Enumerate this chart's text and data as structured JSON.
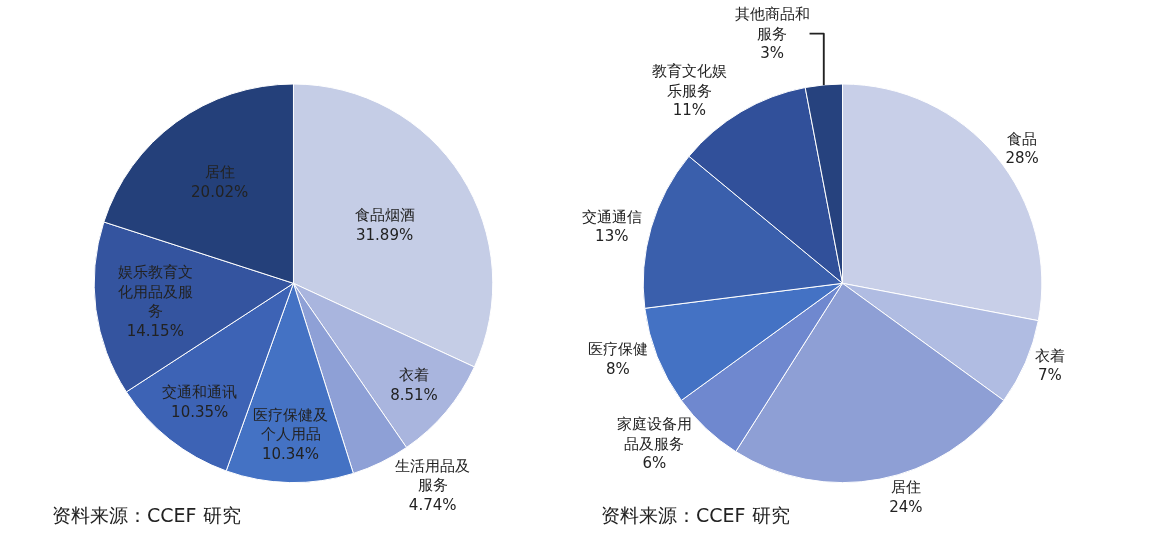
{
  "chart_data": [
    {
      "type": "pie",
      "categories": [
        "食品烟酒",
        "衣着",
        "生活用品及服务",
        "医疗保健及个人用品",
        "交通和通讯",
        "娱乐教育文化用品及服务",
        "居住"
      ],
      "values": [
        31.89,
        8.51,
        4.74,
        10.34,
        10.35,
        14.15,
        20.02
      ],
      "colors": [
        "#c5cde6",
        "#a9b5de",
        "#8ea0d6",
        "#4472c4",
        "#3d63b5",
        "#34549f",
        "#24407a"
      ],
      "value_labels": [
        "31.89%",
        "8.51%",
        "4.74%",
        "10.34%",
        "10.35%",
        "14.15%",
        "20.02%"
      ],
      "legend": false,
      "annotations": [
        "资料来源：CCEF 研究"
      ]
    },
    {
      "type": "pie",
      "categories": [
        "食品",
        "衣着",
        "居住",
        "家庭设备用品及服务",
        "医疗保健",
        "交通通信",
        "教育文化娱乐服务",
        "其他商品和服务"
      ],
      "values": [
        28,
        7,
        24,
        6,
        8,
        13,
        11,
        3
      ],
      "colors": [
        "#c8cfe8",
        "#b0bce2",
        "#8e9fd5",
        "#6f88cf",
        "#4472c4",
        "#3a5fac",
        "#31509a",
        "#26427e"
      ],
      "value_labels": [
        "28%",
        "7%",
        "24%",
        "6%",
        "8%",
        "13%",
        "11%",
        "3%"
      ],
      "legend": false,
      "annotations": [
        "资料来源：CCEF 研究"
      ]
    }
  ]
}
